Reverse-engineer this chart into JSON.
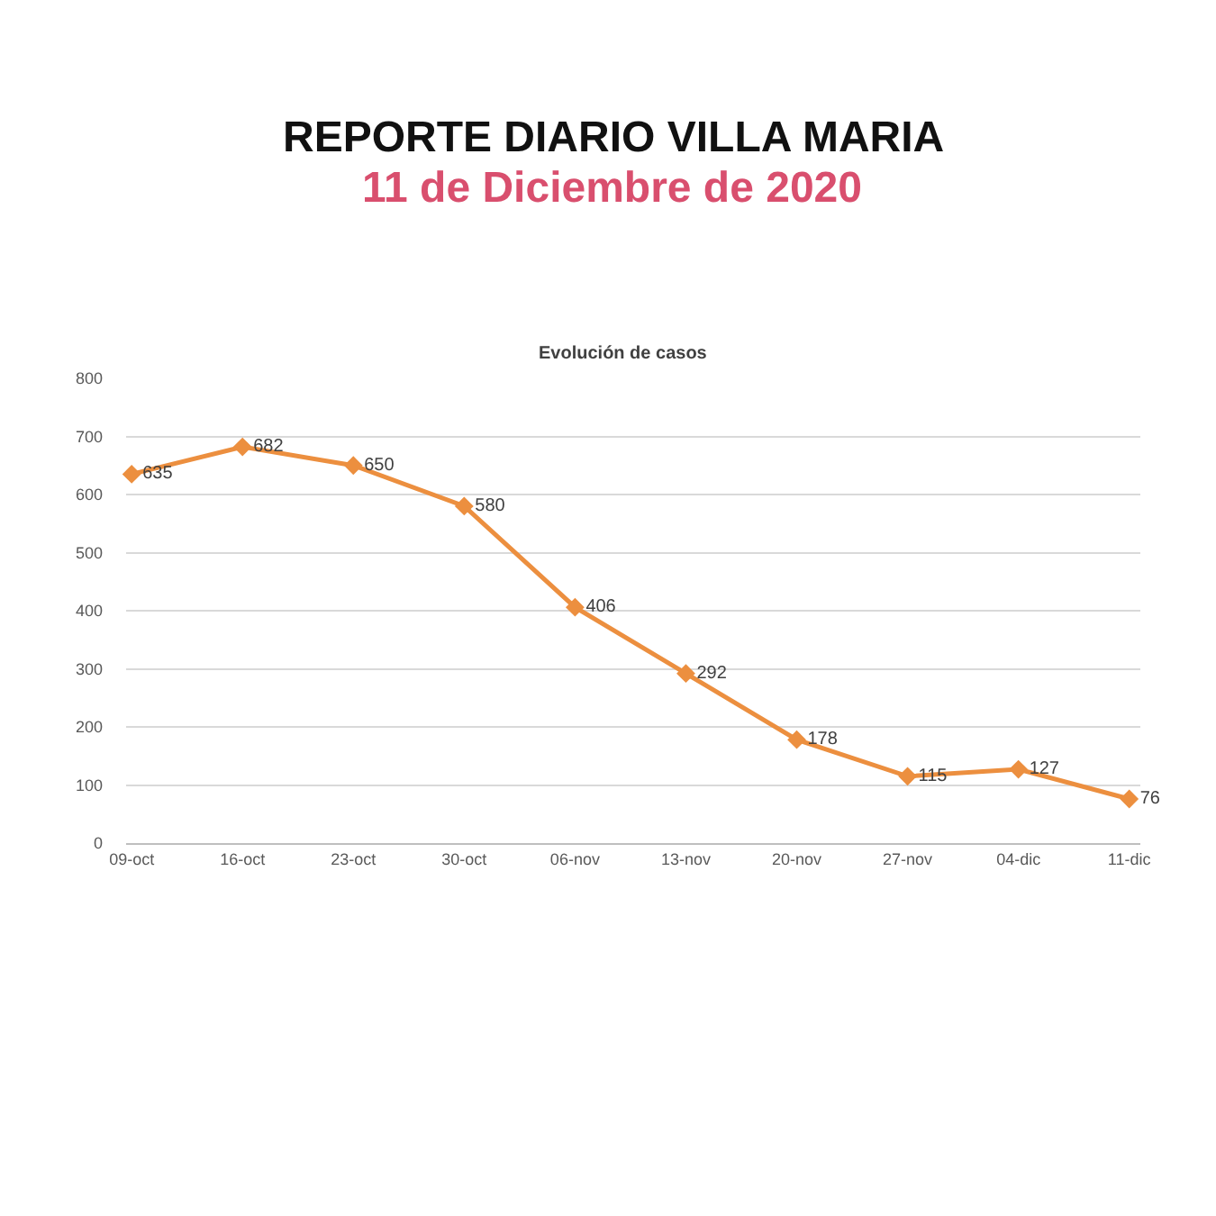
{
  "chart_data": {
    "type": "line",
    "title": "REPORTE DIARIO VILLA MARIA",
    "subtitle": "11 de Diciembre de 2020",
    "annotations": [
      "Evolución de casos"
    ],
    "categories": [
      "09-oct",
      "16-oct",
      "23-oct",
      "30-oct",
      "06-nov",
      "13-nov",
      "20-nov",
      "27-nov",
      "04-dic",
      "11-dic"
    ],
    "series": [
      {
        "color": "#ec8f3f",
        "values": [
          635,
          682,
          650,
          580,
          406,
          292,
          178,
          115,
          127,
          76
        ]
      }
    ],
    "ylim": [
      0,
      800
    ],
    "yticks": [
      0,
      100,
      200,
      300,
      400,
      500,
      600,
      700,
      800
    ],
    "grid": "y",
    "marker": "diamond",
    "line_style": "solid",
    "data_labels": true
  }
}
